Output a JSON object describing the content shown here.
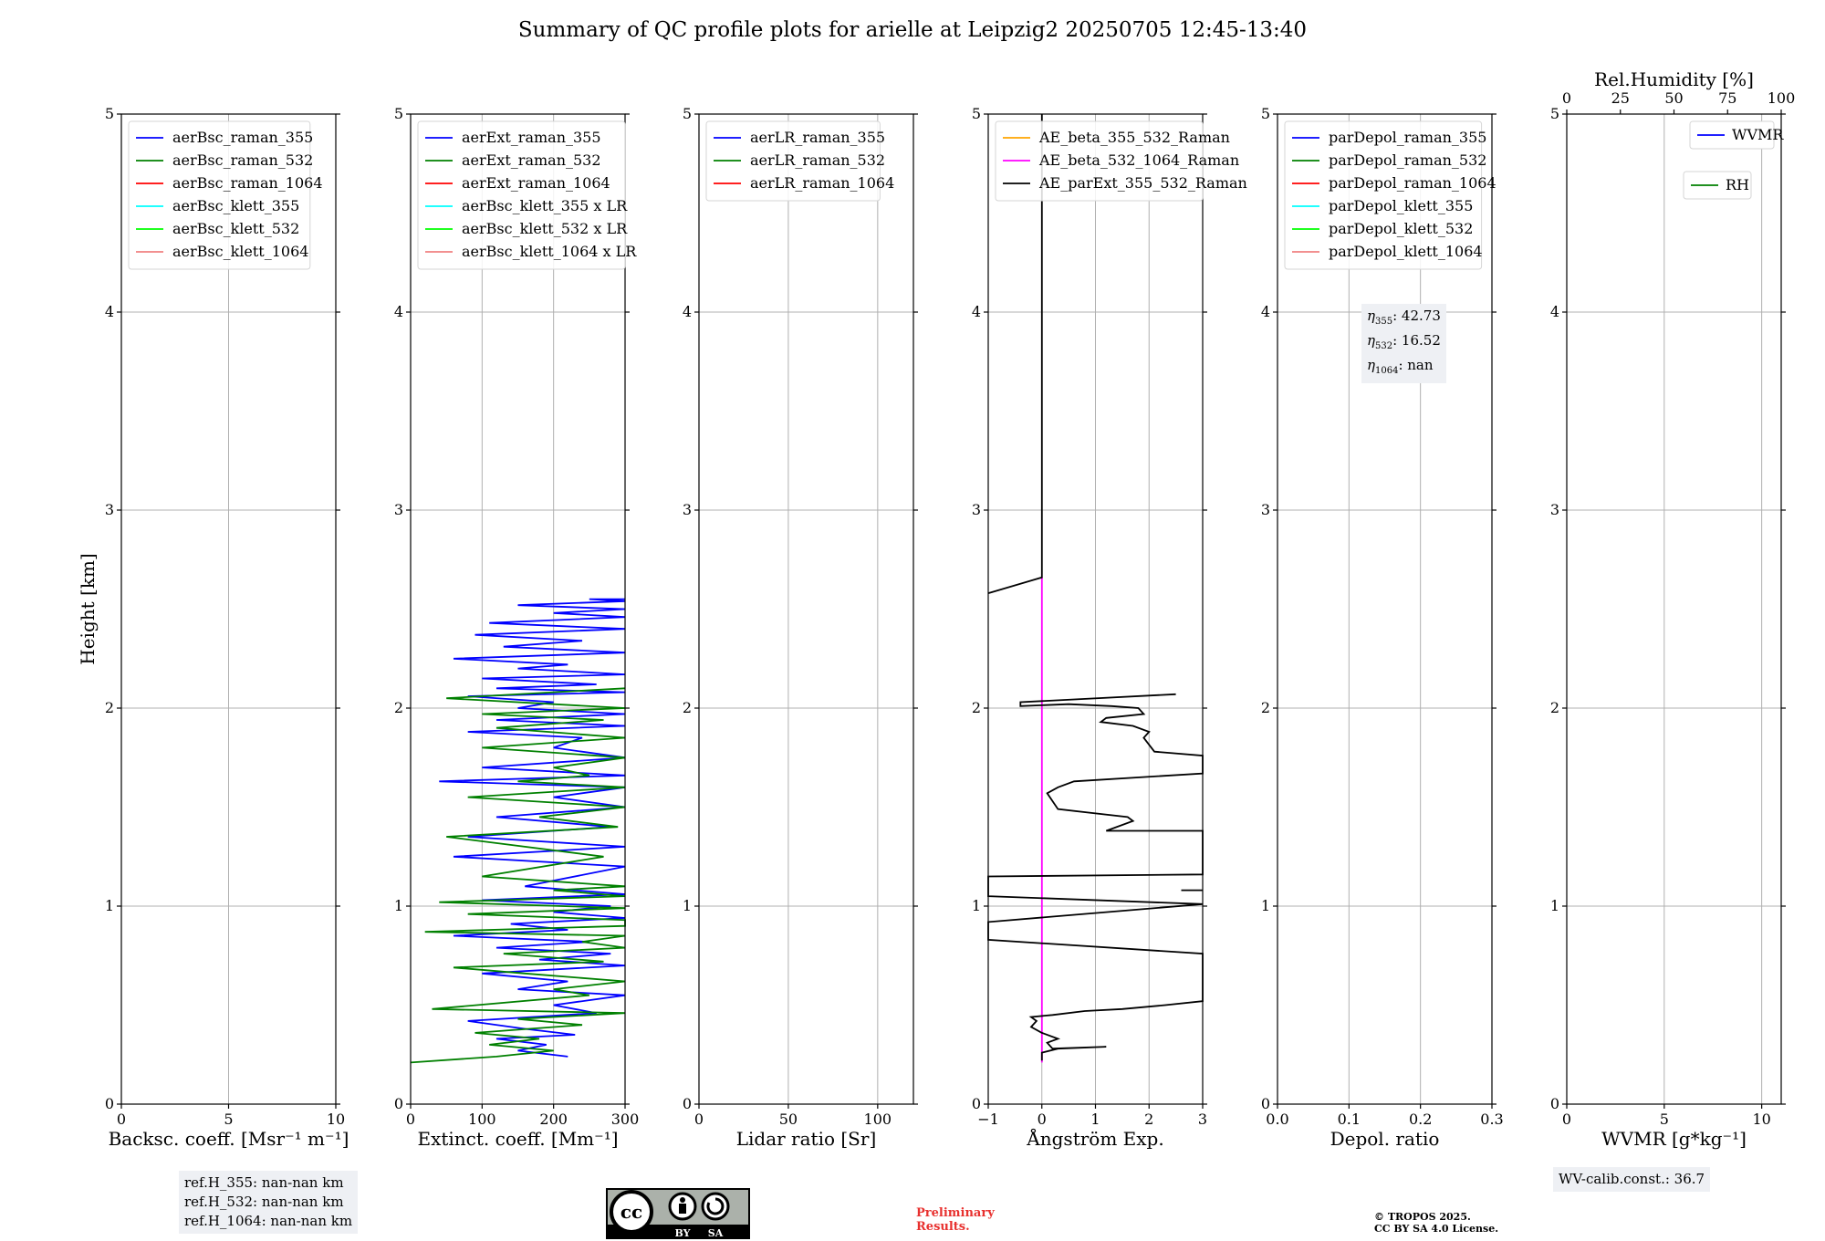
{
  "title": "Summary of QC profile plots for arielle at Leipzig2 20250705 12:45-13:40",
  "footer": {
    "ref_lines": [
      "ref.H_355: nan-nan km",
      "ref.H_532: nan-nan km",
      "ref.H_1064: nan-nan km"
    ],
    "wv_calib": "WV-calib.const.: 36.7",
    "preliminary": [
      "Preliminary",
      "Results."
    ],
    "copyright": [
      "© TROPOS 2025.",
      "CC BY SA 4.0 License."
    ],
    "cc_logo": {
      "badge": "cc",
      "by": "BY",
      "sa": "SA"
    }
  },
  "eta": {
    "items": [
      {
        "sub": "355",
        "value": ": 42.73"
      },
      {
        "sub": "532",
        "value": ": 16.52"
      },
      {
        "sub": "1064",
        "value": ": nan"
      }
    ]
  },
  "colors": {
    "blue": "#0000ff",
    "green": "#008000",
    "red": "#ff0000",
    "cyan": "#00ffff",
    "lime": "#00ff00",
    "pink": "#f08080",
    "orange": "#ffa500",
    "magenta": "#ff00ff",
    "black": "#000000",
    "grid": "#b0b0b0"
  },
  "chart_data": [
    {
      "type": "line",
      "xlabel": "Backsc. coeff. [Msr⁻¹ m⁻¹]",
      "ylabel": "Height [km]",
      "xlim": [
        0,
        10
      ],
      "ylim": [
        0,
        5
      ],
      "xticks": [
        0,
        5,
        10
      ],
      "yticks": [
        0,
        1,
        2,
        3,
        4,
        5
      ],
      "grid": true,
      "legend": "upper left",
      "series": [
        {
          "name": "aerBsc_raman_355",
          "color": "#0000ff",
          "x": [],
          "y": []
        },
        {
          "name": "aerBsc_raman_532",
          "color": "#008000",
          "x": [],
          "y": []
        },
        {
          "name": "aerBsc_raman_1064",
          "color": "#ff0000",
          "x": [],
          "y": []
        },
        {
          "name": "aerBsc_klett_355",
          "color": "#00ffff",
          "x": [],
          "y": []
        },
        {
          "name": "aerBsc_klett_532",
          "color": "#00ff00",
          "x": [],
          "y": []
        },
        {
          "name": "aerBsc_klett_1064",
          "color": "#f08080",
          "x": [],
          "y": []
        }
      ]
    },
    {
      "type": "line",
      "xlabel": "Extinct. coeff. [Mm⁻¹]",
      "ylabel": "",
      "xlim": [
        0,
        300
      ],
      "ylim": [
        0,
        5
      ],
      "xticks": [
        0,
        100,
        200,
        300
      ],
      "yticks": [
        0,
        1,
        2,
        3,
        4,
        5
      ],
      "grid": true,
      "legend": "upper left",
      "series": [
        {
          "name": "aerExt_raman_355",
          "color": "#0000ff",
          "x": [
            220,
            150,
            190,
            120,
            230,
            160,
            80,
            260,
            200,
            300,
            150,
            220,
            100,
            300,
            180,
            280,
            120,
            250,
            60,
            220,
            140,
            300,
            200,
            280,
            100,
            300,
            160,
            300,
            60,
            300,
            80,
            280,
            120,
            300,
            200,
            300,
            40,
            300,
            100,
            300,
            200,
            240,
            80,
            300,
            120,
            300,
            150,
            200,
            80,
            300,
            120,
            260,
            100,
            300,
            150,
            220,
            60,
            300,
            130,
            240,
            90,
            300,
            110,
            300,
            200,
            300,
            150,
            300,
            250,
            300
          ],
          "y": [
            0.24,
            0.27,
            0.3,
            0.33,
            0.35,
            0.38,
            0.42,
            0.46,
            0.5,
            0.55,
            0.58,
            0.62,
            0.66,
            0.7,
            0.73,
            0.76,
            0.79,
            0.82,
            0.85,
            0.88,
            0.91,
            0.94,
            0.97,
            1.0,
            1.03,
            1.06,
            1.1,
            1.2,
            1.25,
            1.3,
            1.35,
            1.4,
            1.45,
            1.5,
            1.55,
            1.6,
            1.63,
            1.66,
            1.7,
            1.75,
            1.8,
            1.85,
            1.88,
            1.91,
            1.94,
            1.97,
            2.0,
            2.03,
            2.06,
            2.08,
            2.1,
            2.12,
            2.15,
            2.17,
            2.2,
            2.22,
            2.25,
            2.28,
            2.31,
            2.34,
            2.37,
            2.4,
            2.43,
            2.46,
            2.48,
            2.5,
            2.52,
            2.54,
            2.55,
            2.55
          ]
        },
        {
          "name": "aerExt_raman_532",
          "color": "#008000",
          "x": [
            0,
            120,
            200,
            110,
            180,
            90,
            240,
            150,
            300,
            30,
            250,
            200,
            300,
            160,
            60,
            270,
            130,
            300,
            240,
            300,
            20,
            300,
            300,
            80,
            300,
            40,
            300,
            200,
            300,
            100,
            270,
            50,
            290,
            180,
            300,
            80,
            300,
            150,
            250,
            200,
            300,
            100,
            300,
            120,
            270,
            100,
            300,
            50,
            300
          ],
          "y": [
            0.21,
            0.24,
            0.27,
            0.3,
            0.33,
            0.36,
            0.4,
            0.43,
            0.46,
            0.48,
            0.55,
            0.58,
            0.62,
            0.66,
            0.69,
            0.72,
            0.76,
            0.79,
            0.82,
            0.85,
            0.87,
            0.9,
            0.93,
            0.96,
            0.99,
            1.02,
            1.05,
            1.08,
            1.1,
            1.15,
            1.25,
            1.35,
            1.4,
            1.45,
            1.5,
            1.55,
            1.6,
            1.63,
            1.66,
            1.7,
            1.75,
            1.8,
            1.85,
            1.9,
            1.94,
            1.97,
            2.0,
            2.05,
            2.1
          ]
        },
        {
          "name": "aerExt_raman_1064",
          "color": "#ff0000",
          "x": [],
          "y": []
        },
        {
          "name": "aerBsc_klett_355 x LR",
          "color": "#00ffff",
          "x": [],
          "y": []
        },
        {
          "name": "aerBsc_klett_532 x LR",
          "color": "#00ff00",
          "x": [],
          "y": []
        },
        {
          "name": "aerBsc_klett_1064 x LR",
          "color": "#f08080",
          "x": [],
          "y": []
        }
      ]
    },
    {
      "type": "line",
      "xlabel": "Lidar ratio [Sr]",
      "ylabel": "",
      "xlim": [
        0,
        120
      ],
      "ylim": [
        0,
        5
      ],
      "xticks": [
        0,
        50,
        100
      ],
      "yticks": [
        0,
        1,
        2,
        3,
        4,
        5
      ],
      "grid": true,
      "legend": "upper left",
      "series": [
        {
          "name": "aerLR_raman_355",
          "color": "#0000ff",
          "x": [],
          "y": []
        },
        {
          "name": "aerLR_raman_532",
          "color": "#008000",
          "x": [],
          "y": []
        },
        {
          "name": "aerLR_raman_1064",
          "color": "#ff0000",
          "x": [],
          "y": []
        }
      ]
    },
    {
      "type": "line",
      "xlabel": "Ångström Exp.",
      "ylabel": "",
      "xlim": [
        -1,
        3
      ],
      "ylim": [
        0,
        5
      ],
      "xticks": [
        -1,
        0,
        1,
        2,
        3
      ],
      "yticks": [
        0,
        1,
        2,
        3,
        4,
        5
      ],
      "grid": true,
      "legend": "upper left",
      "series": [
        {
          "name": "AE_beta_355_532_Raman",
          "color": "#ffa500",
          "x": [],
          "y": []
        },
        {
          "name": "AE_beta_532_1064_Raman",
          "color": "#ff00ff",
          "x": [
            0,
            0
          ],
          "y": [
            0.21,
            2.66
          ]
        },
        {
          "name": "AE_parExt_355_532_Raman",
          "color": "#000000",
          "x": [
            0,
            0,
            0.3,
            1.2,
            0.2,
            0.1,
            0.3,
            0,
            -0.2,
            -0.1,
            -0.2,
            0.2,
            0.8,
            1.5,
            2.3,
            3.2,
            3.2,
            -1,
            -1,
            3.2,
            -1,
            -1,
            3.2,
            3.2,
            1.2,
            1.7,
            1.6,
            0.3,
            0.2,
            0.1,
            0.3,
            0.6,
            3.2,
            3.2,
            2.1,
            1.9,
            2.0,
            1.7,
            1.1,
            1.2,
            1.9,
            1.8,
            1.3,
            0.5,
            -0.4,
            -0.4,
            2.5
          ],
          "y": [
            0.22,
            0.26,
            0.28,
            0.29,
            0.28,
            0.31,
            0.33,
            0.36,
            0.39,
            0.42,
            0.44,
            0.45,
            0.47,
            0.48,
            0.5,
            0.52,
            0.76,
            0.83,
            0.92,
            1.01,
            1.05,
            1.15,
            1.16,
            1.38,
            1.38,
            1.43,
            1.45,
            1.49,
            1.53,
            1.57,
            1.6,
            1.63,
            1.67,
            1.76,
            1.78,
            1.85,
            1.88,
            1.91,
            1.93,
            1.95,
            1.97,
            2.0,
            2.01,
            2.02,
            2.01,
            2.03,
            2.07
          ]
        },
        {
          "name": "",
          "color": "#000000",
          "x": [
            -1.05,
            0,
            0
          ],
          "y": [
            2.58,
            2.66,
            5
          ]
        },
        {
          "name": "",
          "color": "#000000",
          "x": [
            2.6,
            3.1
          ],
          "y": [
            1.08,
            1.08
          ]
        }
      ]
    },
    {
      "type": "line",
      "xlabel": "Depol. ratio",
      "ylabel": "",
      "xlim": [
        0,
        0.3
      ],
      "ylim": [
        0,
        5
      ],
      "xticks": [
        0.0,
        0.1,
        0.2,
        0.3
      ],
      "yticks": [
        0,
        1,
        2,
        3,
        4,
        5
      ],
      "grid": true,
      "legend": "upper left",
      "series": [
        {
          "name": "parDepol_raman_355",
          "color": "#0000ff",
          "x": [],
          "y": []
        },
        {
          "name": "parDepol_raman_532",
          "color": "#008000",
          "x": [],
          "y": []
        },
        {
          "name": "parDepol_raman_1064",
          "color": "#ff0000",
          "x": [],
          "y": []
        },
        {
          "name": "parDepol_klett_355",
          "color": "#00ffff",
          "x": [],
          "y": []
        },
        {
          "name": "parDepol_klett_532",
          "color": "#00ff00",
          "x": [],
          "y": []
        },
        {
          "name": "parDepol_klett_1064",
          "color": "#f08080",
          "x": [],
          "y": []
        }
      ]
    },
    {
      "type": "line",
      "xlabel": "WVMR [g*kg⁻¹]",
      "ylabel": "",
      "xlim": [
        0,
        11
      ],
      "ylim": [
        0,
        5
      ],
      "xticks": [
        0,
        5,
        10
      ],
      "yticks": [
        0,
        1,
        2,
        3,
        4,
        5
      ],
      "grid": true,
      "legend": "upper right",
      "secondary_xlabel": "Rel.Humidity [%]",
      "secondary_xlim": [
        0,
        100
      ],
      "secondary_xticks": [
        0,
        25,
        50,
        75,
        100
      ],
      "series": [
        {
          "name": "WVMR",
          "color": "#0000ff",
          "x": [],
          "y": []
        },
        {
          "name": "RH",
          "color": "#008000",
          "x": [],
          "y": []
        }
      ]
    }
  ]
}
